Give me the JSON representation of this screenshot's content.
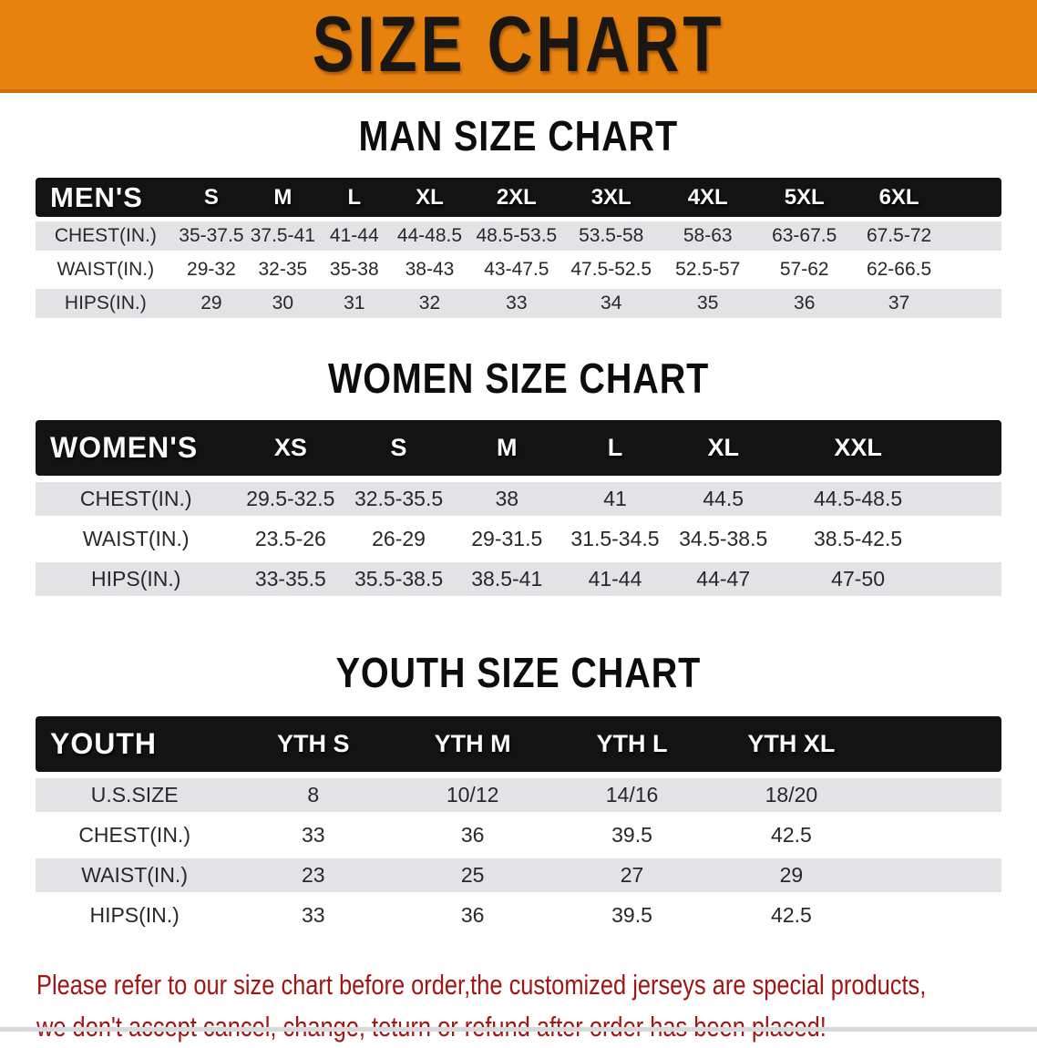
{
  "banner": {
    "title": "SIZE CHART"
  },
  "colors": {
    "banner_orange": "#E8820F",
    "table_header_black": "#131313",
    "stripe_gray": "#E3E3E6",
    "footer_red": "#A31414"
  },
  "sections": [
    {
      "heading": "MAN SIZE CHART",
      "group_label": "MEN'S",
      "columns": [
        "S",
        "M",
        "L",
        "XL",
        "2XL",
        "3XL",
        "4XL",
        "5XL",
        "6XL"
      ],
      "rows": [
        {
          "label": "CHEST(IN.)",
          "values": [
            "35-37.5",
            "37.5-41",
            "41-44",
            "44-48.5",
            "48.5-53.5",
            "53.5-58",
            "58-63",
            "63-67.5",
            "67.5-72"
          ]
        },
        {
          "label": "WAIST(IN.)",
          "values": [
            "29-32",
            "32-35",
            "35-38",
            "38-43",
            "43-47.5",
            "47.5-52.5",
            "52.5-57",
            "57-62",
            "62-66.5"
          ]
        },
        {
          "label": "HIPS(IN.)",
          "values": [
            "29",
            "30",
            "31",
            "32",
            "33",
            "34",
            "35",
            "36",
            "37"
          ]
        }
      ]
    },
    {
      "heading": "WOMEN SIZE CHART",
      "group_label": "WOMEN'S",
      "columns": [
        "XS",
        "S",
        "M",
        "L",
        "XL",
        "XXL"
      ],
      "rows": [
        {
          "label": "CHEST(IN.)",
          "values": [
            "29.5-32.5",
            "32.5-35.5",
            "38",
            "41",
            "44.5",
            "44.5-48.5"
          ]
        },
        {
          "label": "WAIST(IN.)",
          "values": [
            "23.5-26",
            "26-29",
            "29-31.5",
            "31.5-34.5",
            "34.5-38.5",
            "38.5-42.5"
          ]
        },
        {
          "label": "HIPS(IN.)",
          "values": [
            "33-35.5",
            "35.5-38.5",
            "38.5-41",
            "41-44",
            "44-47",
            "47-50"
          ]
        }
      ]
    },
    {
      "heading": "YOUTH SIZE CHART",
      "group_label": "YOUTH",
      "columns": [
        "YTH S",
        "YTH M",
        "YTH L",
        "YTH XL"
      ],
      "rows": [
        {
          "label": "U.S.SIZE",
          "values": [
            "8",
            "10/12",
            "14/16",
            "18/20"
          ]
        },
        {
          "label": "CHEST(IN.)",
          "values": [
            "33",
            "36",
            "39.5",
            "42.5"
          ]
        },
        {
          "label": "WAIST(IN.)",
          "values": [
            "23",
            "25",
            "27",
            "29"
          ]
        },
        {
          "label": "HIPS(IN.)",
          "values": [
            "33",
            "36",
            "39.5",
            "42.5"
          ]
        }
      ]
    }
  ],
  "footer": {
    "line1": "Please refer to our size chart before order,the customized jerseys are special products,",
    "line2": "we don't accept cancel, change, teturn or refund after order has been placed!"
  }
}
